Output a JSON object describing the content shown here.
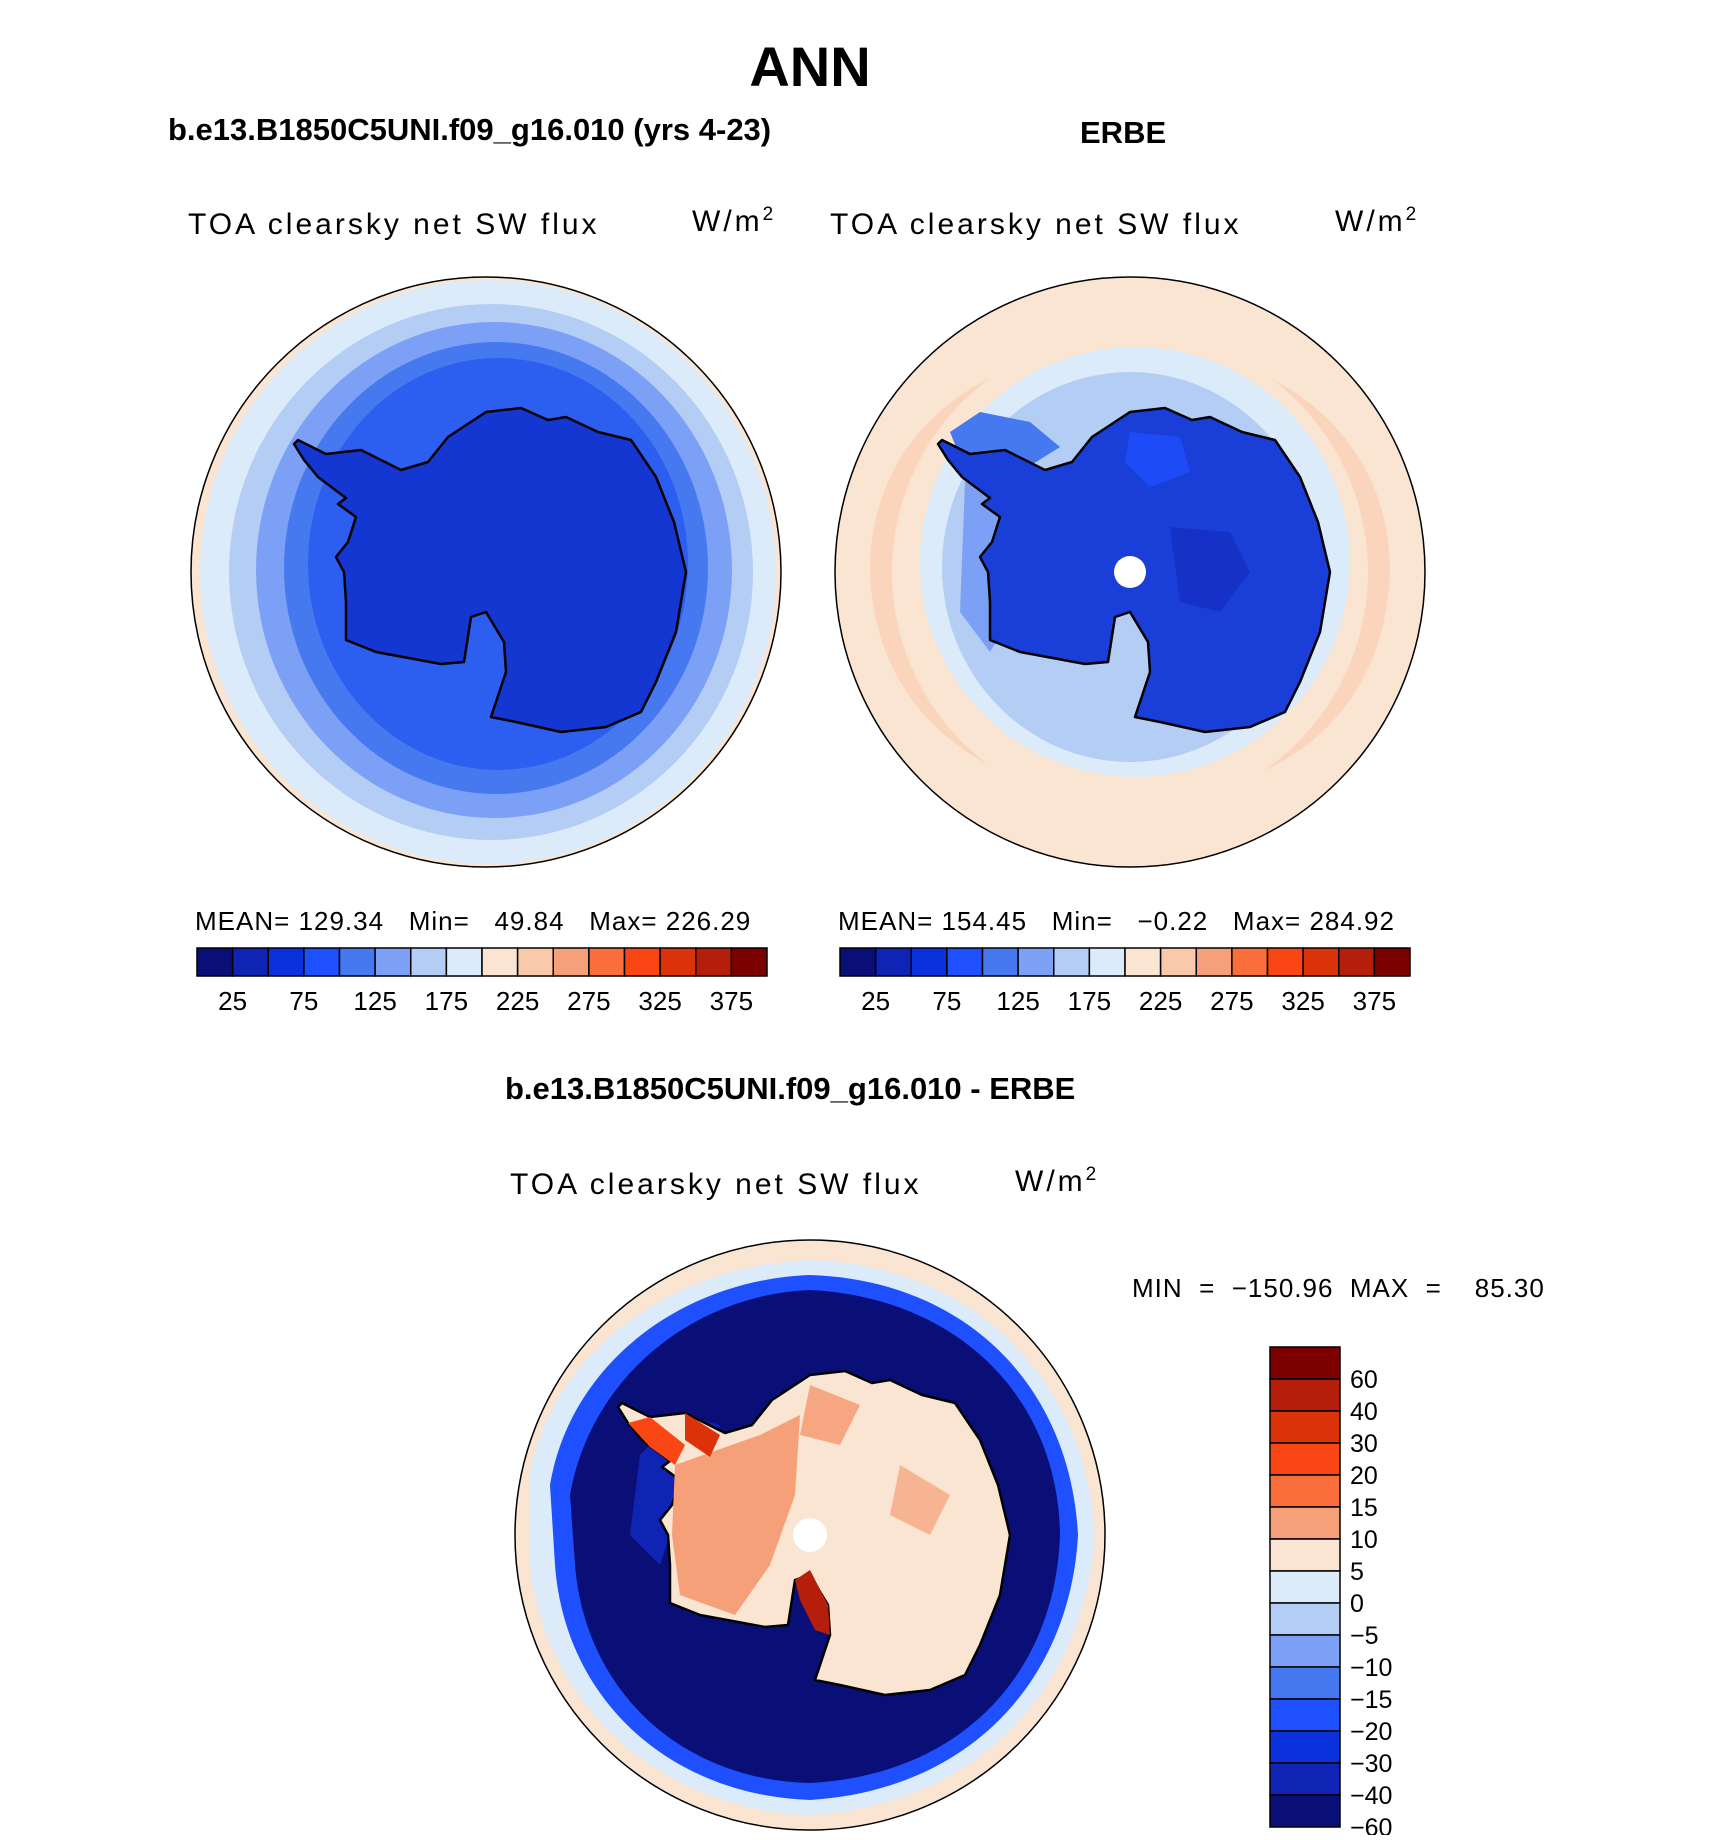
{
  "title": "ANN",
  "panels": [
    {
      "title": "b.e13.B1850C5UNI.f09_g16.010 (yrs 4-23)",
      "variable": "TOA clearsky net SW flux",
      "units": "W/m",
      "units_power": "2",
      "stats": "MEAN= 129.34   Min=   49.84   Max= 226.29"
    },
    {
      "title": "ERBE",
      "variable": "TOA clearsky net SW flux",
      "units": "W/m",
      "units_power": "2",
      "stats": "MEAN= 154.45   Min=   −0.22   Max= 284.92"
    },
    {
      "title": "b.e13.B1850C5UNI.f09_g16.010 - ERBE",
      "variable": "TOA clearsky net SW flux",
      "units": "W/m",
      "units_power": "2",
      "stats": "MIN  =  −150.96  MAX  =    85.30"
    }
  ],
  "top_colorbar": {
    "colors": [
      "#0a0f78",
      "#0f24b4",
      "#0a32dc",
      "#1e50ff",
      "#4678f0",
      "#7ca0f5",
      "#b4cdf5",
      "#dcebfa",
      "#fae4d2",
      "#fac8aa",
      "#f5a078",
      "#fa6e3c",
      "#fa4614",
      "#dc320a",
      "#b41e0a",
      "#7d0000"
    ],
    "labels": [
      "25",
      "75",
      "125",
      "175",
      "225",
      "275",
      "325",
      "375"
    ]
  },
  "diff_colorbar": {
    "colors": [
      "#7d0000",
      "#b41e0a",
      "#dc320a",
      "#fa4614",
      "#fa6e3c",
      "#f5a078",
      "#fae4d2",
      "#dcebfa",
      "#b4cdf5",
      "#7ca0f5",
      "#4678f0",
      "#1e50ff",
      "#0a32dc",
      "#0f24b4",
      "#0a0f78"
    ],
    "labels": [
      "60",
      "40",
      "30",
      "20",
      "15",
      "10",
      "5",
      "0",
      "−5",
      "−10",
      "−15",
      "−20",
      "−30",
      "−40",
      "−60"
    ]
  },
  "colors": {
    "deep_blue": "#1437d2",
    "light_peach": "#fae4d2",
    "coast": "#000000"
  }
}
